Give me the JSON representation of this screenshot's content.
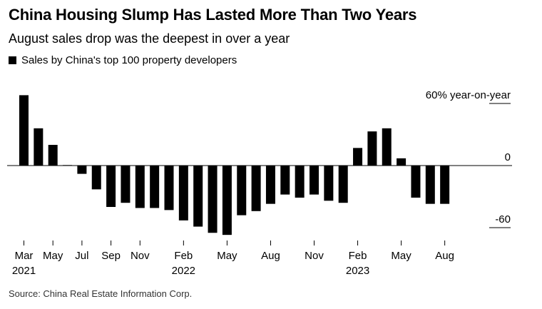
{
  "title": "China Housing Slump Has Lasted More Than Two Years",
  "subtitle": "August sales drop was the deepest in over a year",
  "legend": {
    "label": "Sales by China's top 100 property developers",
    "color": "#000000"
  },
  "source": "Source: China Real Estate Information Corp.",
  "chart_data": {
    "type": "bar",
    "categories": [
      "2021-03",
      "2021-04",
      "2021-05",
      "2021-06",
      "2021-07",
      "2021-08",
      "2021-09",
      "2021-10",
      "2021-11",
      "2021-12",
      "2022-01",
      "2022-02",
      "2022-03",
      "2022-04",
      "2022-05",
      "2022-06",
      "2022-07",
      "2022-08",
      "2022-09",
      "2022-10",
      "2022-11",
      "2022-12",
      "2023-01",
      "2023-02",
      "2023-03",
      "2023-04",
      "2023-05",
      "2023-06",
      "2023-07",
      "2023-08"
    ],
    "series": [
      {
        "values": [
          68,
          36,
          20,
          0.5,
          -8,
          -23,
          -40,
          -36,
          -41,
          -41,
          -43,
          -53,
          -59,
          -65,
          -67,
          -48,
          -44,
          -37,
          -28,
          -31,
          -28,
          -34,
          -36,
          17,
          33,
          36,
          7,
          -31,
          -37,
          -37
        ]
      }
    ],
    "ylim": [
      -66,
      72
    ],
    "ytick_labels": [
      {
        "value": 60,
        "label": "60% year-on-year"
      },
      {
        "value": 0,
        "label": "0"
      },
      {
        "value": -60,
        "label": "-60"
      }
    ],
    "xtick_labels": [
      {
        "index": 0,
        "month": "Mar",
        "year": "2021"
      },
      {
        "index": 2,
        "month": "May",
        "year": ""
      },
      {
        "index": 4,
        "month": "Jul",
        "year": ""
      },
      {
        "index": 6,
        "month": "Sep",
        "year": ""
      },
      {
        "index": 8,
        "month": "Nov",
        "year": ""
      },
      {
        "index": 11,
        "month": "Feb",
        "year": "2022"
      },
      {
        "index": 14,
        "month": "May",
        "year": ""
      },
      {
        "index": 17,
        "month": "Aug",
        "year": ""
      },
      {
        "index": 20,
        "month": "Nov",
        "year": ""
      },
      {
        "index": 23,
        "month": "Feb",
        "year": "2023"
      },
      {
        "index": 26,
        "month": "May",
        "year": ""
      },
      {
        "index": 29,
        "month": "Aug",
        "year": ""
      }
    ],
    "grid": false,
    "legend_position": "top-left"
  }
}
